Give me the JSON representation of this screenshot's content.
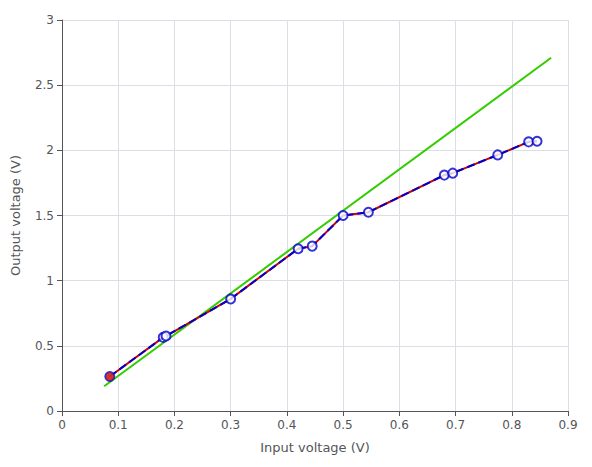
{
  "chart_data": {
    "type": "line",
    "xlabel": "Input voltage (V)",
    "ylabel": "Output voltage (V)",
    "xlim": [
      0,
      0.9
    ],
    "ylim": [
      0,
      3.0
    ],
    "xticks": [
      0,
      0.1,
      0.2,
      0.3,
      0.4,
      0.5,
      0.6,
      0.7,
      0.8,
      0.9
    ],
    "yticks": [
      0,
      0.5,
      1,
      1.5,
      2,
      2.5,
      3
    ],
    "grid": true,
    "series": [
      {
        "type": "line",
        "color": "#33cc00",
        "line_style": "solid",
        "x": [
          0.075,
          0.87
        ],
        "values": [
          0.19,
          2.71
        ]
      },
      {
        "type": "line",
        "color": "#cc0000",
        "line_style": "solid",
        "x": [
          0.085,
          0.18,
          0.185,
          0.3,
          0.42,
          0.445,
          0.5,
          0.545,
          0.68,
          0.695,
          0.775,
          0.83,
          0.845
        ],
        "values": [
          0.265,
          0.565,
          0.575,
          0.86,
          1.245,
          1.265,
          1.5,
          1.525,
          1.81,
          1.825,
          1.965,
          2.065,
          2.07
        ]
      },
      {
        "type": "line",
        "color": "#0000cc",
        "line_style": "dashed",
        "x": [
          0.085,
          0.18,
          0.185,
          0.3,
          0.42,
          0.445,
          0.5,
          0.545,
          0.68,
          0.695,
          0.775,
          0.83,
          0.845
        ],
        "values": [
          0.265,
          0.565,
          0.575,
          0.86,
          1.245,
          1.265,
          1.5,
          1.525,
          1.81,
          1.825,
          1.965,
          2.065,
          2.07
        ]
      },
      {
        "type": "scatter",
        "color": "#0000cc",
        "marker": "open_circle",
        "x": [
          0.085,
          0.18,
          0.185,
          0.3,
          0.42,
          0.445,
          0.5,
          0.545,
          0.68,
          0.695,
          0.775,
          0.83,
          0.845
        ],
        "values": [
          0.265,
          0.565,
          0.575,
          0.86,
          1.245,
          1.265,
          1.5,
          1.525,
          1.81,
          1.825,
          1.965,
          2.065,
          2.07
        ]
      },
      {
        "type": "scatter",
        "color": "#cc0000",
        "marker": "circle",
        "x": [
          0.085
        ],
        "values": [
          0.265
        ]
      }
    ]
  }
}
